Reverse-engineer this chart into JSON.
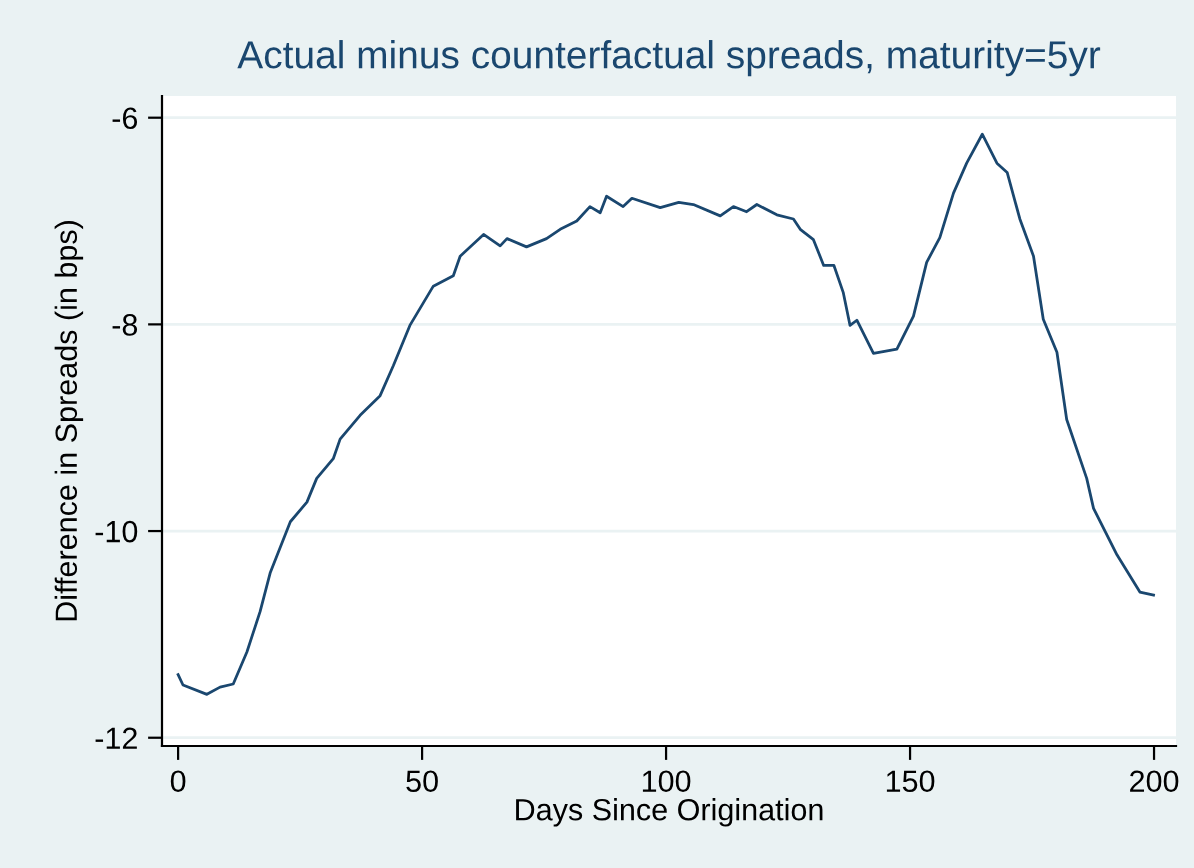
{
  "chart_data": {
    "type": "line",
    "title": "Actual minus counterfactual spreads, maturity=5yr",
    "xlabel": "Days Since Origination",
    "ylabel": "Difference in Spreads (in bps)",
    "xlim": [
      -3.3,
      204.5
    ],
    "ylim": [
      -12.08,
      -5.79
    ],
    "xticks": [
      0,
      50,
      100,
      150,
      200
    ],
    "yticks": [
      -12,
      -10,
      -8,
      -6
    ],
    "grid": "y",
    "legend": false,
    "series": [
      {
        "color": "#1a476f",
        "x": [
          0,
          1,
          5.9,
          8.6,
          11.3,
          14.1,
          16.8,
          18.9,
          23.0,
          26.4,
          28.4,
          31.8,
          33.2,
          37.3,
          41.4,
          44.1,
          47.5,
          52.3,
          56.4,
          57.8,
          62.6,
          66.0,
          67.4,
          71.4,
          75.5,
          78.3,
          81.7,
          84.4,
          86.5,
          87.8,
          91.2,
          93.0,
          98.8,
          102.6,
          105.6,
          111.1,
          113.8,
          116.5,
          118.6,
          122.7,
          126.1,
          127.5,
          130.2,
          132.3,
          134.4,
          136.3,
          137.7,
          139.1,
          142.5,
          147.3,
          150.7,
          153.4,
          156.1,
          158.9,
          161.6,
          164.8,
          167.8,
          169.9,
          172.5,
          175.3,
          177.3,
          180.1,
          182.1,
          186.2,
          187.6,
          192.4,
          197.1,
          199.9
        ],
        "values": [
          -11.39,
          -11.49,
          -11.58,
          -11.51,
          -11.48,
          -11.17,
          -10.78,
          -10.4,
          -9.91,
          -9.72,
          -9.49,
          -9.3,
          -9.11,
          -8.88,
          -8.69,
          -8.4,
          -8.01,
          -7.63,
          -7.53,
          -7.34,
          -7.13,
          -7.24,
          -7.17,
          -7.25,
          -7.17,
          -7.08,
          -7.0,
          -6.86,
          -6.92,
          -6.76,
          -6.86,
          -6.78,
          -6.87,
          -6.82,
          -6.84,
          -6.95,
          -6.86,
          -6.91,
          -6.84,
          -6.94,
          -6.98,
          -7.08,
          -7.18,
          -7.43,
          -7.43,
          -7.69,
          -8.01,
          -7.96,
          -8.28,
          -8.24,
          -7.92,
          -7.4,
          -7.16,
          -6.73,
          -6.44,
          -6.16,
          -6.44,
          -6.53,
          -6.98,
          -7.34,
          -7.95,
          -8.27,
          -8.92,
          -9.49,
          -9.78,
          -10.23,
          -10.59,
          -10.62
        ]
      }
    ]
  }
}
